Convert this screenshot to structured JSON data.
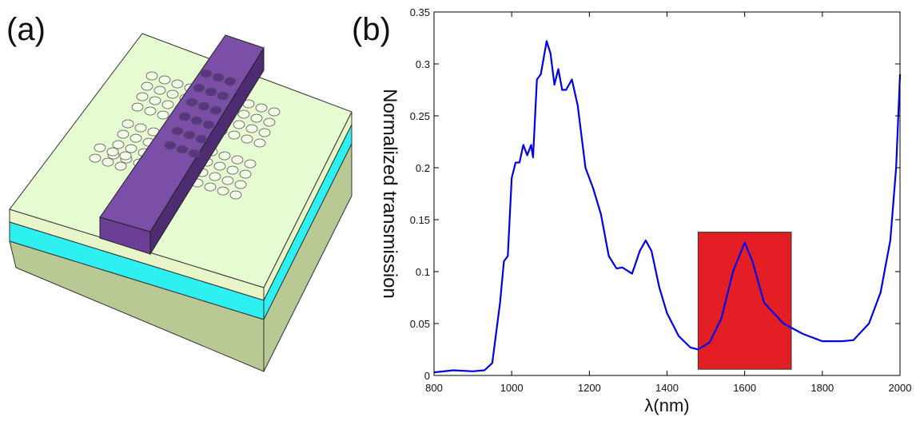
{
  "panel_labels": {
    "a": "(a)",
    "b": "(b)"
  },
  "chart_data": {
    "type": "line",
    "xlabel": "λ(nm)",
    "ylabel": "Normalized transmission",
    "x": [
      800,
      850,
      900,
      930,
      950,
      970,
      980,
      990,
      1000,
      1010,
      1020,
      1030,
      1040,
      1050,
      1055,
      1065,
      1075,
      1090,
      1100,
      1110,
      1120,
      1130,
      1140,
      1155,
      1170,
      1190,
      1210,
      1230,
      1250,
      1270,
      1285,
      1310,
      1330,
      1345,
      1360,
      1380,
      1400,
      1430,
      1460,
      1480,
      1510,
      1540,
      1570,
      1600,
      1620,
      1650,
      1700,
      1750,
      1800,
      1850,
      1880,
      1920,
      1950,
      1975,
      1990,
      2000
    ],
    "values": [
      0.003,
      0.005,
      0.004,
      0.005,
      0.012,
      0.07,
      0.11,
      0.115,
      0.19,
      0.205,
      0.205,
      0.222,
      0.212,
      0.222,
      0.21,
      0.285,
      0.29,
      0.322,
      0.31,
      0.28,
      0.295,
      0.275,
      0.275,
      0.285,
      0.26,
      0.2,
      0.18,
      0.155,
      0.115,
      0.103,
      0.104,
      0.098,
      0.12,
      0.13,
      0.12,
      0.085,
      0.06,
      0.038,
      0.027,
      0.025,
      0.032,
      0.055,
      0.1,
      0.128,
      0.11,
      0.07,
      0.05,
      0.04,
      0.033,
      0.033,
      0.034,
      0.05,
      0.08,
      0.13,
      0.2,
      0.29
    ],
    "color": "#0000ee",
    "highlight": {
      "xlim": [
        1480,
        1720
      ],
      "ylim": [
        0.006,
        0.138
      ],
      "color": "#e31e24"
    },
    "xlim": [
      800,
      2000
    ],
    "xticks": [
      800,
      1000,
      1200,
      1400,
      1600,
      1800,
      2000
    ],
    "ylim": [
      0,
      0.35
    ],
    "yticks": [
      0,
      0.05,
      0.1,
      0.15,
      0.2,
      0.25,
      0.3,
      0.35
    ]
  }
}
